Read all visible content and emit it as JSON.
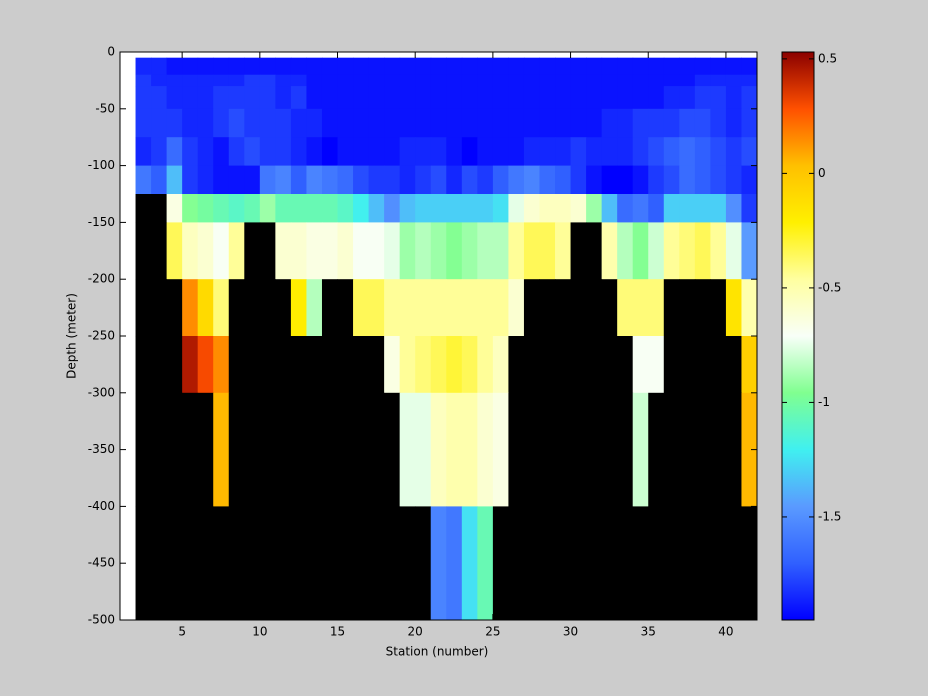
{
  "chart_data": {
    "type": "heatmap",
    "xlabel": "Station (number)",
    "ylabel": "Depth (meter)",
    "xlim": [
      1,
      42
    ],
    "ylim": [
      -500,
      0
    ],
    "xticks": [
      5,
      10,
      15,
      20,
      25,
      30,
      35,
      40
    ],
    "yticks": [
      0,
      -50,
      -100,
      -150,
      -200,
      -250,
      -300,
      -350,
      -400,
      -450,
      -500
    ],
    "x_edges": [
      2,
      3,
      4,
      5,
      6,
      7,
      8,
      9,
      10,
      11,
      12,
      13,
      14,
      15,
      16,
      17,
      18,
      19,
      20,
      21,
      22,
      23,
      24,
      25,
      26,
      27,
      28,
      29,
      30,
      31,
      32,
      33,
      34,
      35,
      36,
      37,
      38,
      39,
      40,
      41,
      42
    ],
    "y_edges": [
      -5,
      -20,
      -30,
      -50,
      -75,
      -100,
      -125,
      -150,
      -200,
      -250,
      -300,
      -400,
      -500
    ],
    "z": [
      [
        -1.85,
        -1.85,
        -1.9,
        -1.9,
        -1.9,
        -1.9,
        -1.9,
        -1.9,
        -1.9,
        -1.9,
        -1.9,
        -1.9,
        -1.9,
        -1.9,
        -1.9,
        -1.9,
        -1.9,
        -1.9,
        -1.9,
        -1.9,
        -1.9,
        -1.9,
        -1.9,
        -1.9,
        -1.9,
        -1.9,
        -1.9,
        -1.9,
        -1.9,
        -1.9,
        -1.9,
        -1.9,
        -1.9,
        -1.9,
        -1.9,
        -1.9,
        -1.9,
        -1.9,
        -1.9,
        -1.9
      ],
      [
        -1.8,
        -1.85,
        -1.85,
        -1.85,
        -1.85,
        -1.85,
        -1.85,
        -1.8,
        -1.8,
        -1.85,
        -1.85,
        -1.9,
        -1.9,
        -1.9,
        -1.9,
        -1.9,
        -1.9,
        -1.9,
        -1.9,
        -1.9,
        -1.9,
        -1.9,
        -1.9,
        -1.9,
        -1.9,
        -1.9,
        -1.9,
        -1.9,
        -1.9,
        -1.9,
        -1.9,
        -1.9,
        -1.9,
        -1.9,
        -1.9,
        -1.9,
        -1.85,
        -1.85,
        -1.85,
        -1.85
      ],
      [
        -1.8,
        -1.8,
        -1.85,
        -1.85,
        -1.85,
        -1.8,
        -1.8,
        -1.8,
        -1.8,
        -1.85,
        -1.8,
        -1.9,
        -1.9,
        -1.9,
        -1.9,
        -1.9,
        -1.9,
        -1.9,
        -1.9,
        -1.9,
        -1.9,
        -1.9,
        -1.9,
        -1.9,
        -1.9,
        -1.9,
        -1.9,
        -1.9,
        -1.9,
        -1.9,
        -1.9,
        -1.9,
        -1.9,
        -1.9,
        -1.85,
        -1.85,
        -1.8,
        -1.8,
        -1.85,
        -1.8
      ],
      [
        -1.8,
        -1.8,
        -1.8,
        -1.85,
        -1.85,
        -1.8,
        -1.75,
        -1.8,
        -1.8,
        -1.8,
        -1.85,
        -1.85,
        -1.9,
        -1.9,
        -1.9,
        -1.9,
        -1.9,
        -1.9,
        -1.9,
        -1.9,
        -1.9,
        -1.9,
        -1.9,
        -1.9,
        -1.9,
        -1.9,
        -1.9,
        -1.9,
        -1.9,
        -1.9,
        -1.85,
        -1.85,
        -1.8,
        -1.8,
        -1.8,
        -1.75,
        -1.75,
        -1.8,
        -1.85,
        -1.8
      ],
      [
        -1.85,
        -1.8,
        -1.65,
        -1.8,
        -1.85,
        -1.9,
        -1.8,
        -1.75,
        -1.8,
        -1.8,
        -1.85,
        -1.9,
        -1.95,
        -1.9,
        -1.9,
        -1.9,
        -1.9,
        -1.85,
        -1.85,
        -1.85,
        -1.9,
        -1.95,
        -1.9,
        -1.9,
        -1.9,
        -1.85,
        -1.85,
        -1.85,
        -1.8,
        -1.85,
        -1.85,
        -1.85,
        -1.8,
        -1.75,
        -1.7,
        -1.65,
        -1.7,
        -1.75,
        -1.8,
        -1.75
      ],
      [
        -1.6,
        -1.7,
        -1.35,
        -1.8,
        -1.85,
        -1.9,
        -1.9,
        -1.9,
        -1.6,
        -1.55,
        -1.7,
        -1.55,
        -1.6,
        -1.65,
        -1.75,
        -1.8,
        -1.8,
        -1.85,
        -1.8,
        -1.75,
        -1.85,
        -1.75,
        -1.8,
        -1.7,
        -1.6,
        -1.55,
        -1.65,
        -1.7,
        -1.8,
        -1.9,
        -1.95,
        -1.95,
        -1.9,
        -1.8,
        -1.75,
        -1.65,
        -1.7,
        -1.75,
        -1.8,
        -1.85
      ],
      [
        null,
        null,
        -0.65,
        -0.95,
        -1.0,
        -1.05,
        -1.1,
        -1.05,
        -0.9,
        -1.05,
        -1.05,
        -1.05,
        -1.05,
        -1.1,
        -1.2,
        -1.35,
        -1.5,
        -1.35,
        -1.3,
        -1.3,
        -1.3,
        -1.3,
        -1.3,
        -1.25,
        -0.75,
        -0.6,
        -0.55,
        -0.55,
        -0.6,
        -0.9,
        -1.35,
        -1.65,
        -1.6,
        -1.7,
        -1.3,
        -1.3,
        -1.3,
        -1.3,
        -1.5,
        -1.8
      ],
      [
        null,
        null,
        -0.35,
        -0.55,
        -0.6,
        -0.7,
        -0.45,
        null,
        null,
        -0.6,
        -0.6,
        -0.65,
        -0.65,
        -0.6,
        -0.7,
        -0.7,
        -0.75,
        -0.9,
        -0.85,
        -0.9,
        -0.95,
        -0.9,
        -0.85,
        -0.85,
        -0.45,
        -0.35,
        -0.35,
        -0.45,
        null,
        null,
        -0.5,
        -0.85,
        -0.95,
        -0.8,
        -0.45,
        -0.4,
        -0.35,
        -0.45,
        -0.75,
        -1.45
      ],
      [
        null,
        null,
        null,
        0.15,
        -0.1,
        -0.4,
        null,
        null,
        null,
        null,
        -0.2,
        -0.85,
        null,
        null,
        -0.35,
        -0.35,
        -0.45,
        -0.45,
        -0.45,
        -0.45,
        -0.45,
        -0.45,
        -0.45,
        -0.45,
        -0.6,
        null,
        null,
        null,
        null,
        null,
        null,
        -0.4,
        -0.4,
        -0.4,
        null,
        null,
        null,
        null,
        -0.15,
        -0.5
      ],
      [
        null,
        null,
        null,
        0.45,
        0.3,
        0.15,
        null,
        null,
        null,
        null,
        null,
        null,
        null,
        null,
        null,
        null,
        -0.65,
        -0.45,
        -0.4,
        -0.35,
        -0.3,
        -0.35,
        -0.45,
        -0.55,
        null,
        null,
        null,
        null,
        null,
        null,
        null,
        null,
        -0.7,
        -0.7,
        null,
        null,
        null,
        null,
        null,
        -0.05
      ],
      [
        null,
        null,
        null,
        null,
        null,
        0.05,
        null,
        null,
        null,
        null,
        null,
        null,
        null,
        null,
        null,
        null,
        null,
        -0.75,
        -0.75,
        -0.55,
        -0.5,
        -0.5,
        -0.6,
        -0.65,
        null,
        null,
        null,
        null,
        null,
        null,
        null,
        null,
        -0.8,
        null,
        null,
        null,
        null,
        null,
        null,
        0.05
      ],
      [
        null,
        null,
        null,
        null,
        null,
        null,
        null,
        null,
        null,
        null,
        null,
        null,
        null,
        null,
        null,
        null,
        null,
        null,
        null,
        -1.55,
        -1.6,
        -1.25,
        -1.05,
        null,
        null,
        null,
        null,
        null,
        null,
        null,
        null,
        null,
        null,
        null,
        null,
        null,
        null,
        null,
        null,
        null
      ]
    ],
    "nan_color": "#000000",
    "clim": [
      -1.95,
      0.53
    ],
    "cticks": [
      -1.5,
      -1,
      -0.5,
      0,
      0.5
    ],
    "colormap": [
      "#0000ff",
      "#3060ff",
      "#5a9aff",
      "#40f0f0",
      "#80ff90",
      "#f8fff8",
      "#ffffa0",
      "#fff000",
      "#ffc000",
      "#ff5000",
      "#8b0000"
    ]
  }
}
